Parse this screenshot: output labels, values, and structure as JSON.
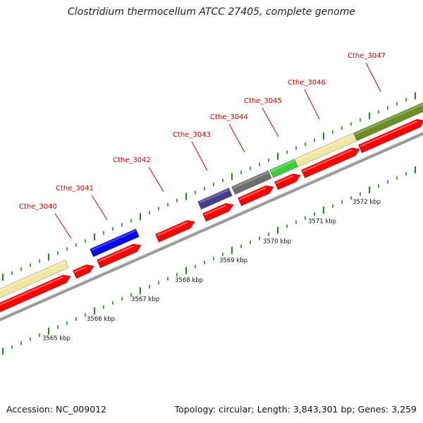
{
  "title": "Clostridium thermocellum ATCC 27405, complete genome",
  "footer": {
    "accession": "Accession: NC_009012",
    "summary": "Topology: circular; Length: 3,843,301 bp; Genes: 3,259"
  },
  "colors": {
    "cds": "#ff0000",
    "label": "#d00000",
    "backbone": "#999999",
    "ticks": "#1f8a1f",
    "gene_cthe_3040": "#f0e8a0",
    "gene_cthe_3041": "#0000ee",
    "gene_cthe_3043": "#463c8c",
    "gene_cthe_3044": "#6e6e6e",
    "gene_cthe_3045": "#3ccc3c",
    "gene_cthe_3046": "#f0e8a0",
    "gene_cthe_3047": "#6b8e23"
  },
  "kbp_labels": [
    "3565 kbp",
    "3566 kbp",
    "3567 kbp",
    "3568 kbp",
    "3569 kbp",
    "3570 kbp",
    "3571 kbp",
    "3572 kbp"
  ],
  "genes": [
    {
      "name": "Cthe_3040"
    },
    {
      "name": "Cthe_3041"
    },
    {
      "name": "Cthe_3042"
    },
    {
      "name": "Cthe_3043"
    },
    {
      "name": "Cthe_3044"
    },
    {
      "name": "Cthe_3045"
    },
    {
      "name": "Cthe_3046"
    },
    {
      "name": "Cthe_3047"
    }
  ]
}
